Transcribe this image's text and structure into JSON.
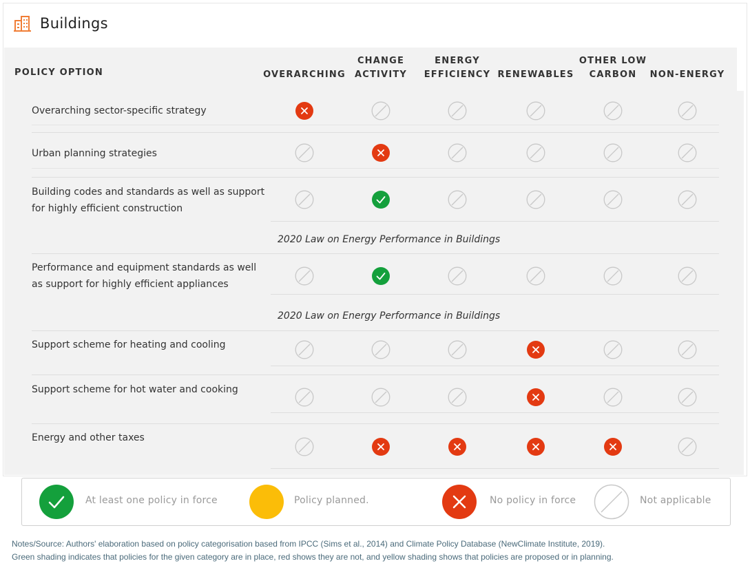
{
  "title": "Buildings",
  "header": {
    "policy_option": "POLICY OPTION",
    "columns": [
      {
        "line1": "",
        "line2": "OVERARCHING"
      },
      {
        "line1": "CHANGE",
        "line2": "ACTIVITY"
      },
      {
        "line1": "ENERGY",
        "line2": "EFFICIENCY"
      },
      {
        "line1": "",
        "line2": "RENEWABLES"
      },
      {
        "line1": "OTHER LOW",
        "line2": "CARBON"
      },
      {
        "line1": "",
        "line2": "NON-ENERGY"
      }
    ]
  },
  "rows": [
    {
      "label": "Overarching sector-specific strategy",
      "status": [
        "no",
        "na",
        "na",
        "na",
        "na",
        "na"
      ]
    },
    {
      "label": "Urban planning strategies",
      "status": [
        "na",
        "no",
        "na",
        "na",
        "na",
        "na"
      ]
    },
    {
      "label": "Building codes and standards as well as support for highly efficient construction",
      "status": [
        "na",
        "yes",
        "na",
        "na",
        "na",
        "na"
      ],
      "note": "2020 Law on Energy Performance in Buildings"
    },
    {
      "label": "Performance and equipment standards as well as support for highly efficient appliances",
      "status": [
        "na",
        "yes",
        "na",
        "na",
        "na",
        "na"
      ],
      "note": "2020 Law on Energy Performance in Buildings"
    },
    {
      "label": "Support scheme for heating and cooling",
      "status": [
        "na",
        "na",
        "na",
        "no",
        "na",
        "na"
      ]
    },
    {
      "label": "Support scheme for hot water and cooking",
      "status": [
        "na",
        "na",
        "na",
        "no",
        "na",
        "na"
      ]
    },
    {
      "label": "Energy and other taxes",
      "status": [
        "na",
        "no",
        "no",
        "no",
        "no",
        "na"
      ]
    }
  ],
  "legend": {
    "in_force": "At least one policy in force",
    "planned": "Policy planned.",
    "no_policy": "No policy in force",
    "not_applicable": "Not applicable"
  },
  "notes": {
    "line1": "Notes/Source: Authors' elaboration based on policy categorisation based from IPCC (Sims et al., 2014) and Climate Policy Database (NewClimate Institute, 2019).",
    "line2": "Green shading indicates that policies for the given category are in place, red shows they are not, and yellow shading shows that policies are proposed or in planning."
  },
  "colors": {
    "green": "#14a03c",
    "red": "#e33a12",
    "yellow": "#fbbd08",
    "na_stroke": "#c8c8c8",
    "title_icon": "#f07d35"
  }
}
